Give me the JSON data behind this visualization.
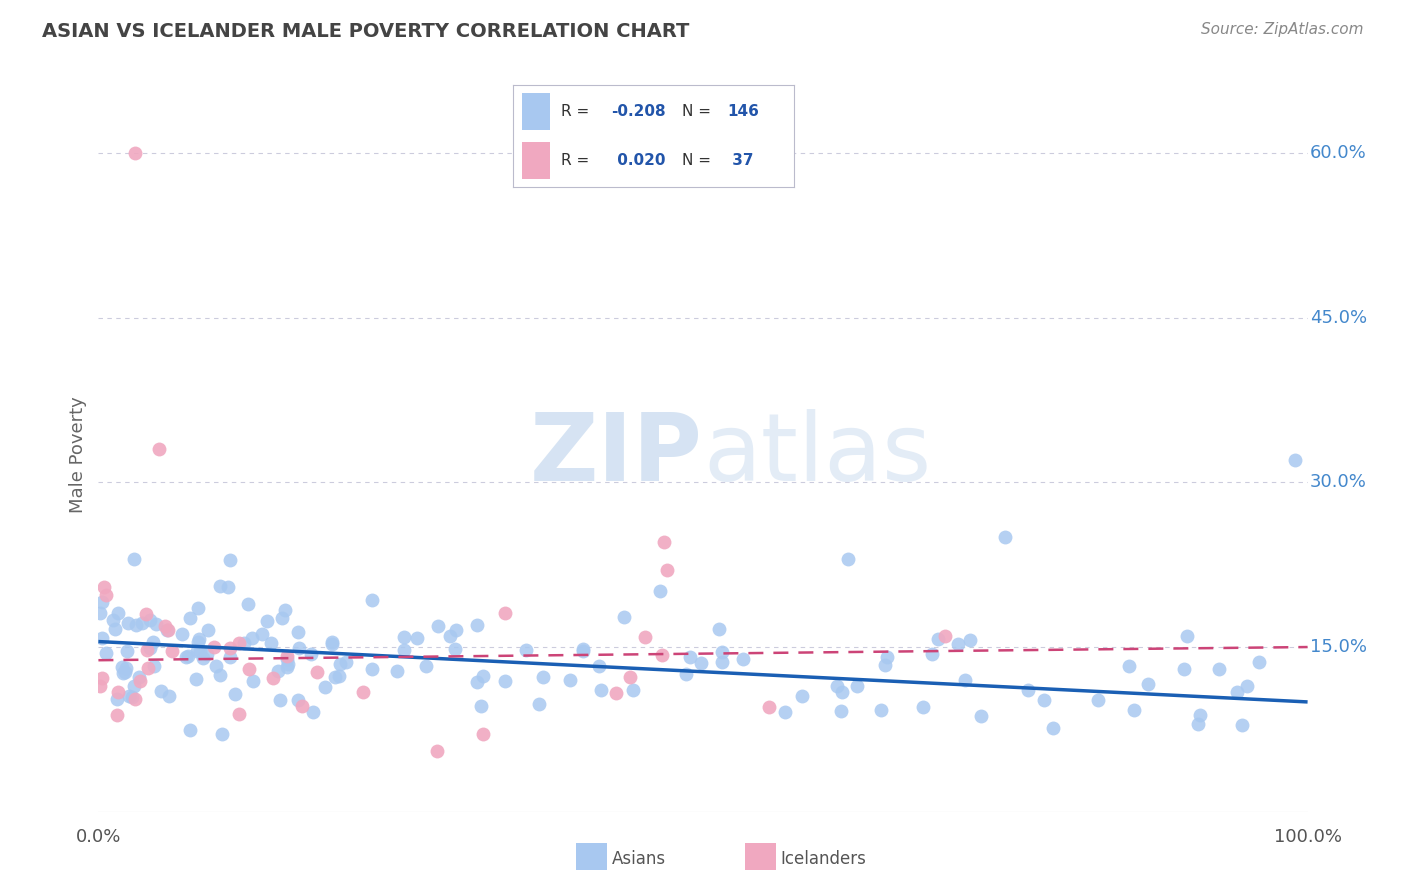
{
  "title": "ASIAN VS ICELANDER MALE POVERTY CORRELATION CHART",
  "source": "Source: ZipAtlas.com",
  "ylabel": "Male Poverty",
  "x_range": [
    0.0,
    1.0
  ],
  "y_range": [
    0.0,
    0.65
  ],
  "ytick_vals": [
    0.15,
    0.3,
    0.45,
    0.6
  ],
  "ytick_labels": [
    "15.0%",
    "30.0%",
    "45.0%",
    "60.0%"
  ],
  "xtick_vals": [
    0.0,
    1.0
  ],
  "xtick_labels": [
    "0.0%",
    "100.0%"
  ],
  "legend_blue_r": "-0.208",
  "legend_blue_n": "146",
  "legend_pink_r": "0.020",
  "legend_pink_n": "37",
  "blue_color": "#a8c8f0",
  "pink_color": "#f0a8c0",
  "blue_line_color": "#1a5fb4",
  "pink_line_color": "#cc4477",
  "background_color": "#ffffff",
  "watermark_color": "#ccddf0",
  "title_color": "#444444",
  "ytick_color": "#4488cc",
  "xtick_color": "#555555",
  "source_color": "#888888",
  "legend_text_color": "#333333",
  "legend_value_color": "#2255aa",
  "seed": 12345,
  "blue_slope": -0.055,
  "blue_intercept": 0.155,
  "pink_slope": 0.012,
  "pink_intercept": 0.138
}
